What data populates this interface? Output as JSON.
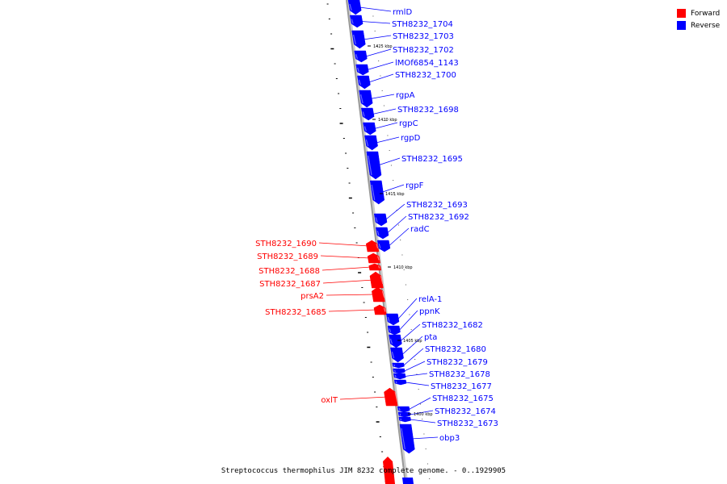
{
  "colors": {
    "forward": "#ff0000",
    "reverse": "#0000ff",
    "backbone": "#999999",
    "tick": "#000000"
  },
  "legend": [
    {
      "label": "Forward",
      "color": "#ff0000"
    },
    {
      "label": "Reverse",
      "color": "#0000ff"
    }
  ],
  "caption": "Streptococcus thermophilus JIM 8232 complete genome. - 0..1929905",
  "scale": {
    "unit": "kbp",
    "tick_labels": [
      "1425 kbp",
      "1420 kbp",
      "1415 kbp",
      "1410 kbp",
      "1405 kbp",
      "1400 kbp"
    ]
  },
  "genes": [
    {
      "name": "rmlD",
      "strand": "reverse"
    },
    {
      "name": "STH8232_1704",
      "strand": "reverse"
    },
    {
      "name": "STH8232_1703",
      "strand": "reverse"
    },
    {
      "name": "STH8232_1702",
      "strand": "reverse"
    },
    {
      "name": "lMOf6854_1143",
      "strand": "reverse"
    },
    {
      "name": "STH8232_1700",
      "strand": "reverse"
    },
    {
      "name": "rgpA",
      "strand": "reverse"
    },
    {
      "name": "STH8232_1698",
      "strand": "reverse"
    },
    {
      "name": "rgpC",
      "strand": "reverse"
    },
    {
      "name": "rgpD",
      "strand": "reverse"
    },
    {
      "name": "STH8232_1695",
      "strand": "reverse"
    },
    {
      "name": "rgpF",
      "strand": "reverse"
    },
    {
      "name": "STH8232_1693",
      "strand": "reverse"
    },
    {
      "name": "STH8232_1692",
      "strand": "reverse"
    },
    {
      "name": "radC",
      "strand": "reverse"
    },
    {
      "name": "STH8232_1690",
      "strand": "forward"
    },
    {
      "name": "STH8232_1689",
      "strand": "forward"
    },
    {
      "name": "STH8232_1688",
      "strand": "forward"
    },
    {
      "name": "STH8232_1687",
      "strand": "forward"
    },
    {
      "name": "prsA2",
      "strand": "forward"
    },
    {
      "name": "STH8232_1685",
      "strand": "forward"
    },
    {
      "name": "relA-1",
      "strand": "reverse"
    },
    {
      "name": "ppnK",
      "strand": "reverse"
    },
    {
      "name": "STH8232_1682",
      "strand": "reverse"
    },
    {
      "name": "pta",
      "strand": "reverse"
    },
    {
      "name": "STH8232_1680",
      "strand": "reverse"
    },
    {
      "name": "STH8232_1679",
      "strand": "reverse"
    },
    {
      "name": "STH8232_1678",
      "strand": "reverse"
    },
    {
      "name": "STH8232_1677",
      "strand": "reverse"
    },
    {
      "name": "oxlT",
      "strand": "forward"
    },
    {
      "name": "STH8232_1675",
      "strand": "reverse"
    },
    {
      "name": "STH8232_1674",
      "strand": "reverse"
    },
    {
      "name": "STH8232_1673",
      "strand": "reverse"
    },
    {
      "name": "obp3",
      "strand": "reverse"
    }
  ]
}
